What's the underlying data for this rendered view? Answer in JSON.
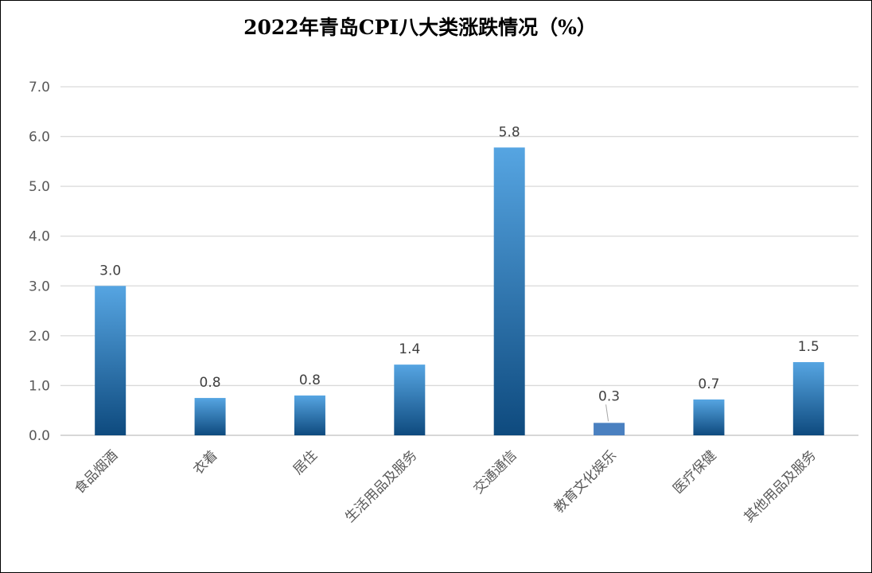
{
  "chart_data": {
    "type": "bar",
    "title": "2022年青岛CPI八大类涨跌情况（%）",
    "xlabel": "",
    "ylabel": "",
    "categories": [
      "食品烟酒",
      "衣着",
      "居住",
      "生活用品及服务",
      "交通通信",
      "教育文化娱乐",
      "医疗保健",
      "其他用品及服务"
    ],
    "values": [
      3.0,
      0.75,
      0.8,
      1.42,
      5.78,
      0.25,
      0.72,
      1.47
    ],
    "data_labels": [
      "3.0",
      "0.8",
      "0.8",
      "1.4",
      "5.8",
      "0.3",
      "0.7",
      "1.5"
    ],
    "ylim": [
      0,
      7
    ],
    "yticks": [
      "0.0",
      "1.0",
      "2.0",
      "3.0",
      "4.0",
      "5.0",
      "6.0",
      "7.0"
    ],
    "grid": true,
    "legend": "none",
    "colors": {
      "bar_top": "#56A5E2",
      "bar_bottom": "#0E4A7E",
      "bar_highlight": "#4A80C0",
      "grid": "#D9D9D9",
      "axis": "#BFBFBF"
    },
    "highlight_index": 5
  }
}
